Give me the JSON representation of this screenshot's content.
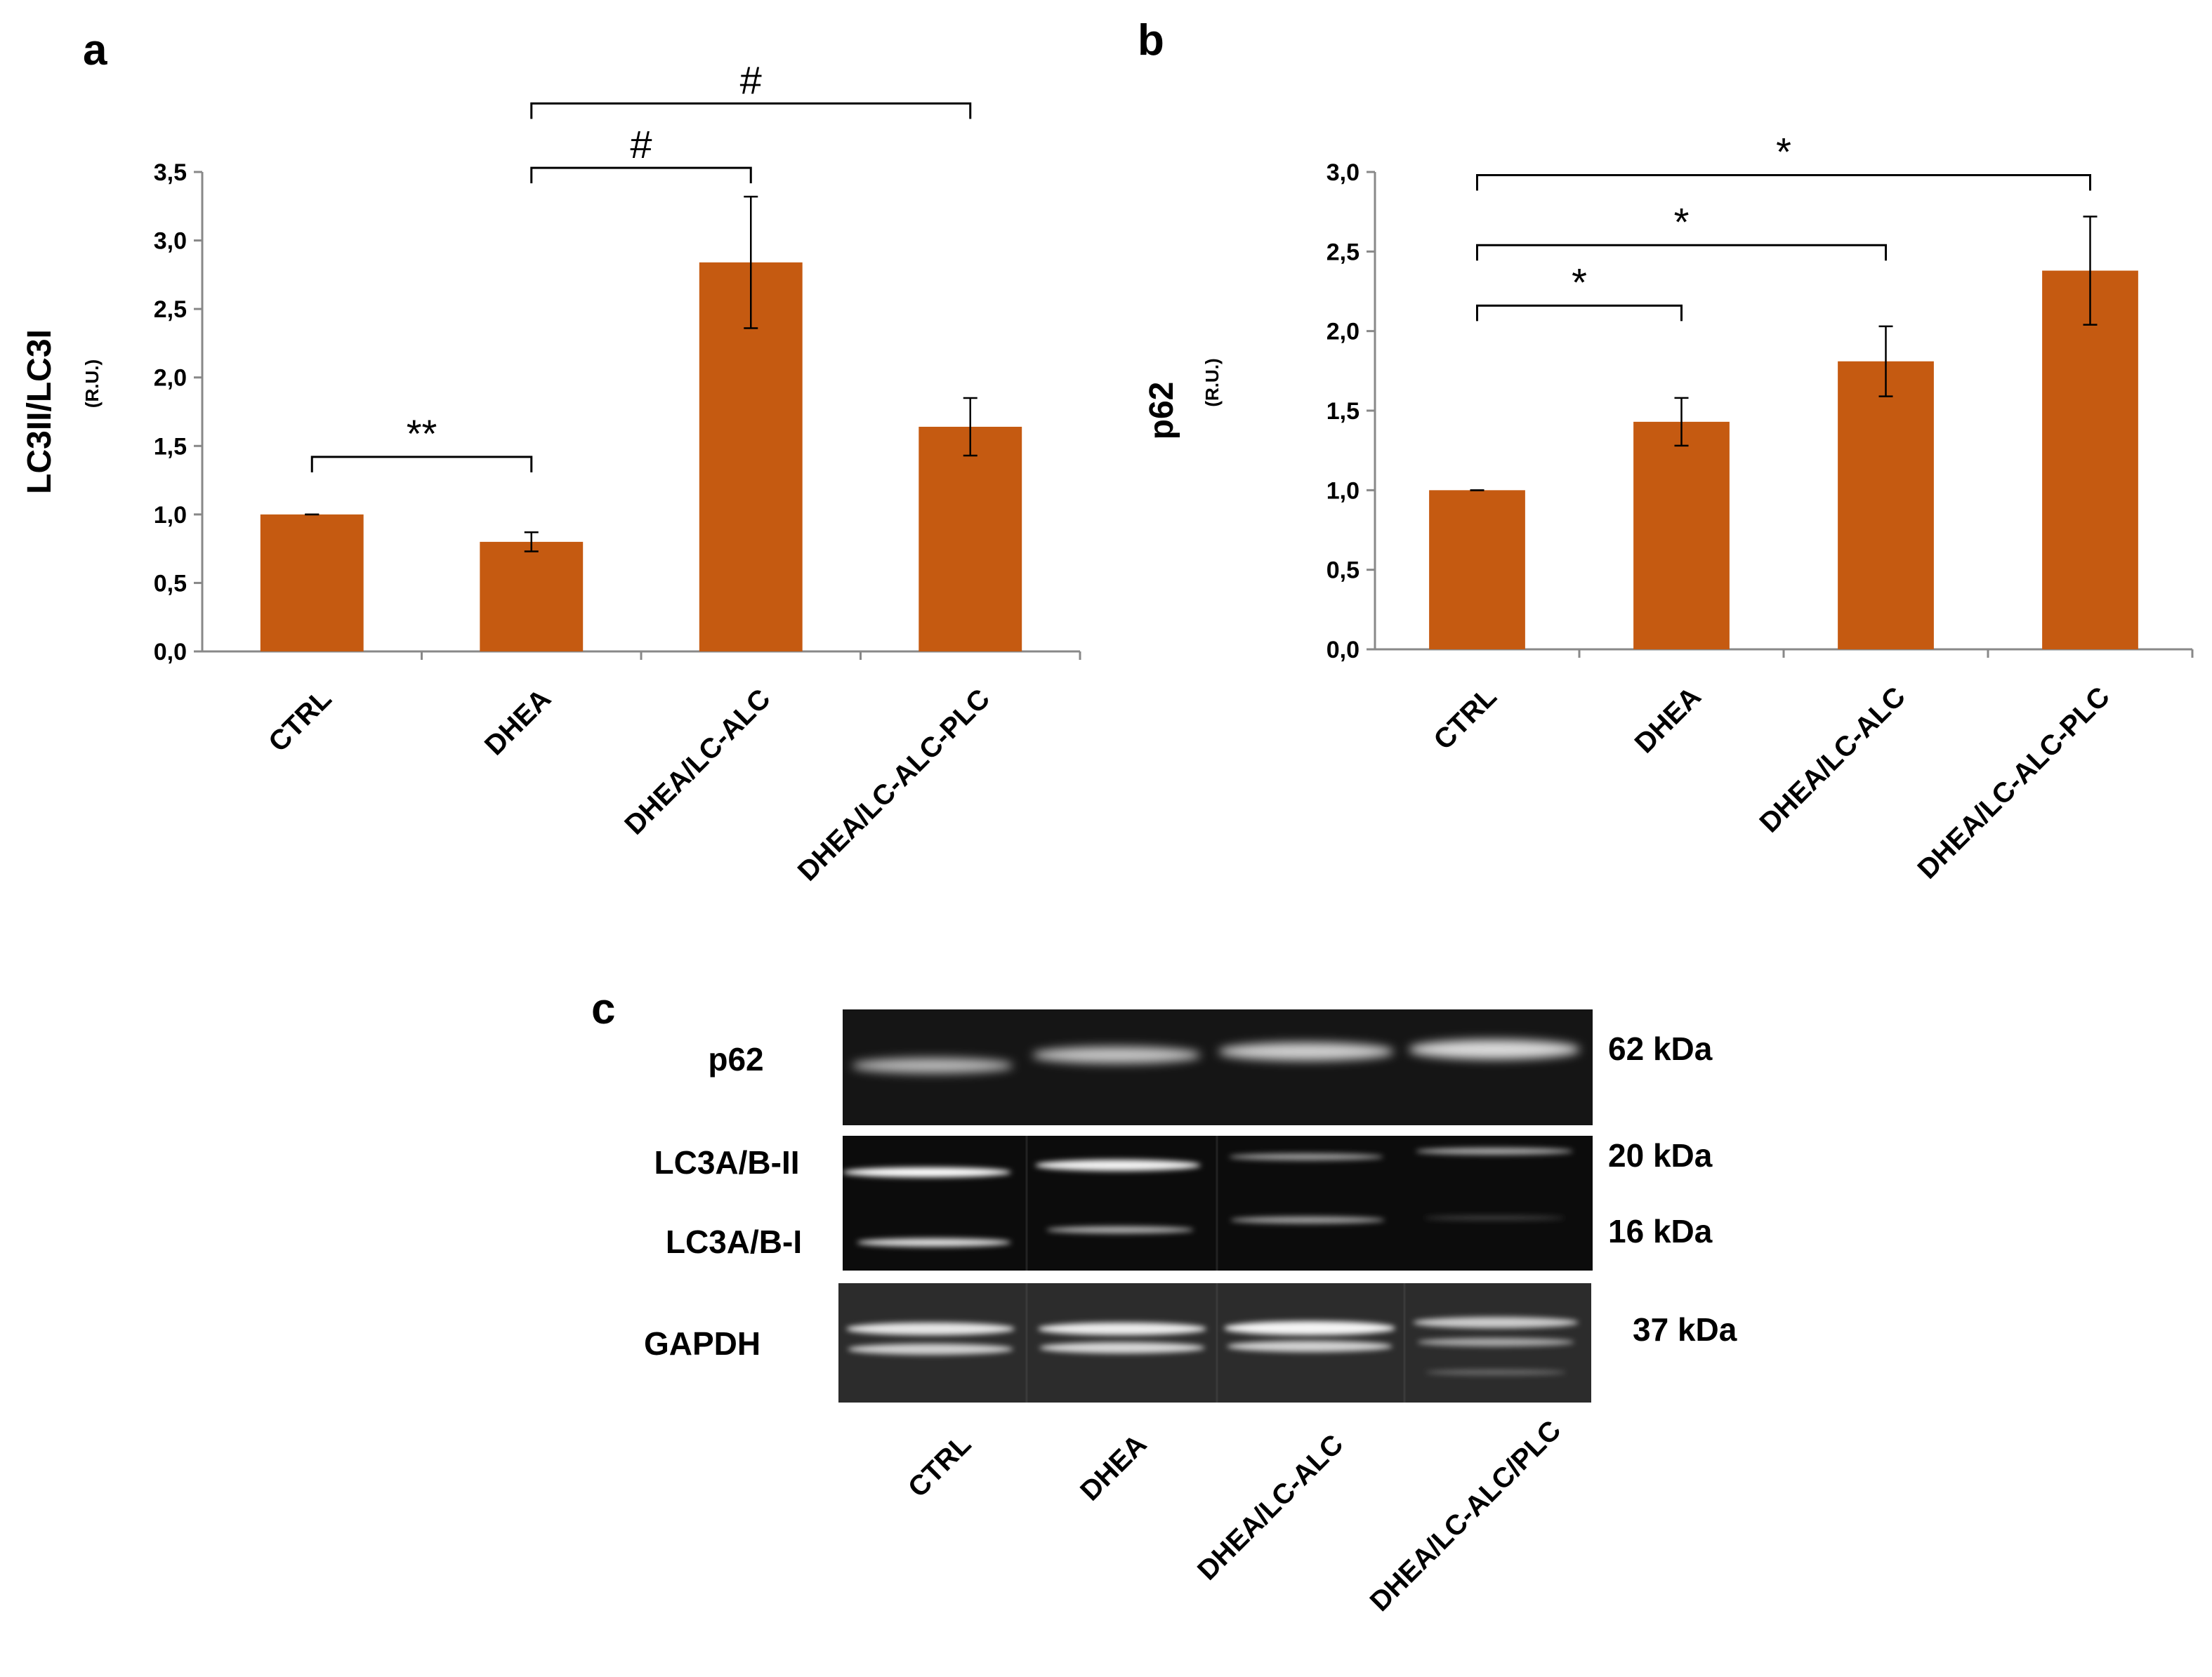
{
  "panel_letters": {
    "a": "a",
    "b": "b",
    "c": "c"
  },
  "chart_data": [
    {
      "type": "bar",
      "panel": "a",
      "ylabel": "LC3II/LC3I",
      "yunit": "(R.U.)",
      "categories": [
        "CTRL",
        "DHEA",
        "DHEA/LC-ALC",
        "DHEA/LC-ALC-PLC"
      ],
      "values": [
        1.0,
        0.8,
        2.84,
        1.64
      ],
      "errors": [
        0.0,
        0.07,
        0.48,
        0.21
      ],
      "ylim": [
        0,
        3.5
      ],
      "yticks": [
        "0,0",
        "0,5",
        "1,0",
        "1,5",
        "2,0",
        "2,5",
        "3,0",
        "3,5"
      ],
      "bar_color": "#c55a11",
      "significance": [
        {
          "from": 0,
          "to": 1,
          "label": "**",
          "y": 1.42
        },
        {
          "from": 1,
          "to": 2,
          "label": "#",
          "y": 3.53
        },
        {
          "from": 1,
          "to": 3,
          "label": "#",
          "y": 4.0
        }
      ]
    },
    {
      "type": "bar",
      "panel": "b",
      "ylabel": "p62",
      "yunit": "(R.U.)",
      "categories": [
        "CTRL",
        "DHEA",
        "DHEA/LC-ALC",
        "DHEA/LC-ALC-PLC"
      ],
      "values": [
        1.0,
        1.43,
        1.81,
        2.38
      ],
      "errors": [
        0.0,
        0.15,
        0.22,
        0.34
      ],
      "ylim": [
        0,
        3.0
      ],
      "yticks": [
        "0,0",
        "0,5",
        "1,0",
        "1,5",
        "2,0",
        "2,5",
        "3,0"
      ],
      "bar_color": "#c55a11",
      "significance": [
        {
          "from": 0,
          "to": 1,
          "label": "*",
          "y": 2.16
        },
        {
          "from": 0,
          "to": 2,
          "label": "*",
          "y": 2.54
        },
        {
          "from": 0,
          "to": 3,
          "label": "*",
          "y": 2.98
        }
      ]
    }
  ],
  "blot": {
    "rows": [
      {
        "label": "p62",
        "sizes": [
          "62 kDa"
        ]
      },
      {
        "label": "LC3A/B-II",
        "sizes": [
          "20 kDa"
        ]
      },
      {
        "label": "LC3A/B-I",
        "sizes": [
          "16 kDa"
        ]
      },
      {
        "label": "GAPDH",
        "sizes": [
          "37 kDa"
        ]
      }
    ],
    "lanes": [
      "CTRL",
      "DHEA",
      "DHEA/LC-ALC",
      "DHEA/LC-ALC/PLC"
    ]
  }
}
